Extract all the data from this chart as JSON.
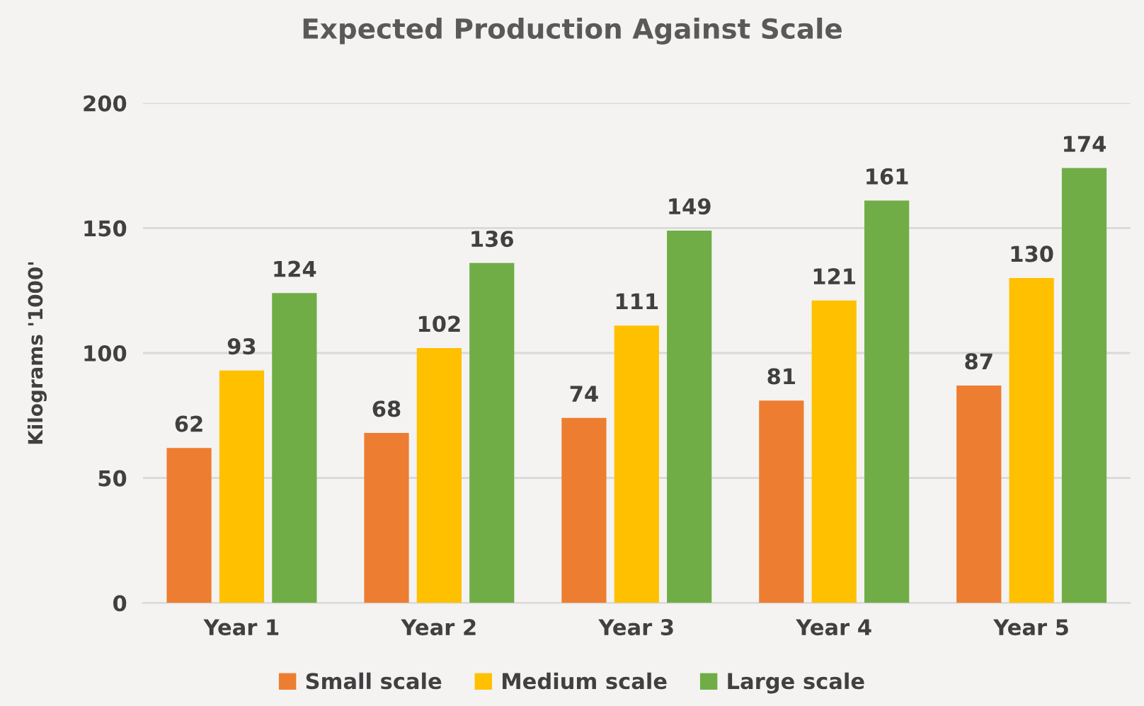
{
  "chart_data": {
    "type": "bar",
    "title": "Expected Production Against Scale",
    "ylabel": "Kilograms '1000'",
    "categories": [
      "Year 1",
      "Year 2",
      "Year 3",
      "Year 4",
      "Year 5"
    ],
    "series": [
      {
        "name": "Small scale",
        "color": "#ed7d31",
        "values": [
          62,
          68,
          74,
          81,
          87
        ]
      },
      {
        "name": "Medium scale",
        "color": "#ffc000",
        "values": [
          93,
          102,
          111,
          121,
          130
        ]
      },
      {
        "name": "Large scale",
        "color": "#70ad47",
        "values": [
          124,
          136,
          149,
          161,
          174
        ]
      }
    ],
    "ylim": [
      0,
      200
    ],
    "yticks": [
      0,
      50,
      100,
      150,
      200
    ],
    "grid": "y",
    "legend": "bottom",
    "data_labels": true
  }
}
